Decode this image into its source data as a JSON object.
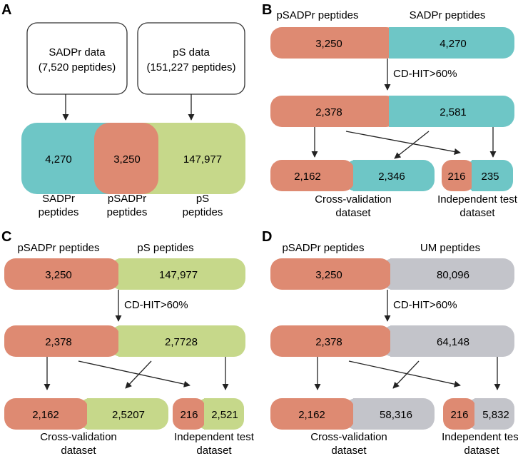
{
  "colors": {
    "salmon": "#DE8A72",
    "teal": "#6EC6C6",
    "green": "#C6D88A",
    "gray": "#C3C4CA",
    "stroke": "#333333"
  },
  "panel_a": {
    "letter": "A",
    "sadpr_box": {
      "line1": "SADPr data",
      "line2": "(7,520 peptides)"
    },
    "ps_box": {
      "line1": "pS data",
      "line2": "(151,227 peptides)"
    },
    "venn": {
      "left": "4,270",
      "middle": "3,250",
      "right": "147,977"
    },
    "bottom_labels": {
      "sadpr_l1": "SADPr",
      "sadpr_l2": "peptides",
      "psadpr_l1": "pSADPr",
      "psadpr_l2": "peptides",
      "ps_l1": "pS",
      "ps_l2": "peptides"
    }
  },
  "panels": [
    {
      "letter": "B",
      "left_header": "pSADPr peptides",
      "right_header": "SADPr peptides",
      "top_left": "3,250",
      "top_right": "4,270",
      "filter": "CD-HIT>60%",
      "mid_left": "2,378",
      "mid_right": "2,581",
      "cv_left": "2,162",
      "cv_right": "2,346",
      "test_left": "216",
      "test_right": "235",
      "cv_label_l1": "Cross-validation",
      "cv_label_l2": "dataset",
      "test_label_l1": "Independent test",
      "test_label_l2": "dataset"
    },
    {
      "letter": "C",
      "left_header": "pSADPr peptides",
      "right_header": "pS peptides",
      "top_left": "3,250",
      "top_right": "147,977",
      "filter": "CD-HIT>60%",
      "mid_left": "2,378",
      "mid_right": "2,7728",
      "cv_left": "2,162",
      "cv_right": "2,5207",
      "test_left": "216",
      "test_right": "2,521",
      "cv_label_l1": "Cross-validation",
      "cv_label_l2": "dataset",
      "test_label_l1": "Independent test",
      "test_label_l2": "dataset"
    },
    {
      "letter": "D",
      "left_header": "pSADPr peptides",
      "right_header": "UM peptides",
      "top_left": "3,250",
      "top_right": "80,096",
      "filter": "CD-HIT>60%",
      "mid_left": "2,378",
      "mid_right": "64,148",
      "cv_left": "2,162",
      "cv_right": "58,316",
      "test_left": "216",
      "test_right": "5,832",
      "cv_label_l1": "Cross-validation",
      "cv_label_l2": "dataset",
      "test_label_l1": "Independent test",
      "test_label_l2": "dataset"
    }
  ]
}
